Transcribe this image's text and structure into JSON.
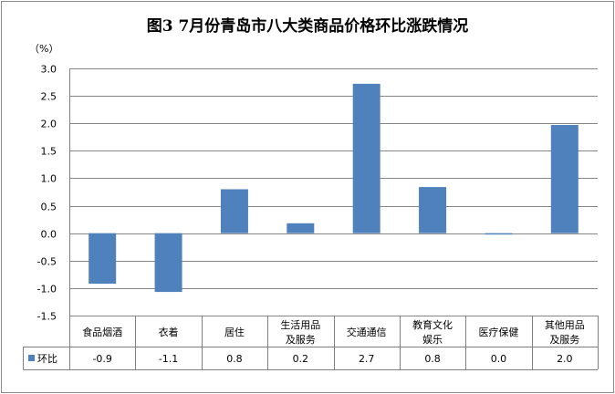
{
  "title": "图3   7月份青岛市八大类商品价格环比涨跌情况",
  "colors": {
    "bar": "#4f81bd",
    "grid": "#868686",
    "axis": "#808080"
  },
  "chart_data": {
    "type": "bar",
    "title": "图3   7月份青岛市八大类商品价格环比涨跌情况",
    "ylabel": "（%）",
    "ylim": [
      -1.5,
      3.0
    ],
    "yticks": [
      "3.0",
      "2.5",
      "2.0",
      "1.5",
      "1.0",
      "0.5",
      "0.0",
      "-0.5",
      "-1.0",
      "-1.5"
    ],
    "grid": true,
    "categories": [
      [
        "食品烟酒"
      ],
      [
        "衣着"
      ],
      [
        "居住"
      ],
      [
        "生活用品",
        "及服务"
      ],
      [
        "交通通信"
      ],
      [
        "教育文化",
        "娱乐"
      ],
      [
        "医疗保健"
      ],
      [
        "其他用品",
        "及服务"
      ]
    ],
    "series": [
      {
        "name": "环比",
        "values": [
          -0.92,
          -1.07,
          0.8,
          0.18,
          2.72,
          0.84,
          -0.02,
          1.97
        ],
        "labels": [
          "-0.9",
          "-1.1",
          "0.8",
          "0.2",
          "2.7",
          "0.8",
          "0.0",
          "2.0"
        ]
      }
    ]
  }
}
